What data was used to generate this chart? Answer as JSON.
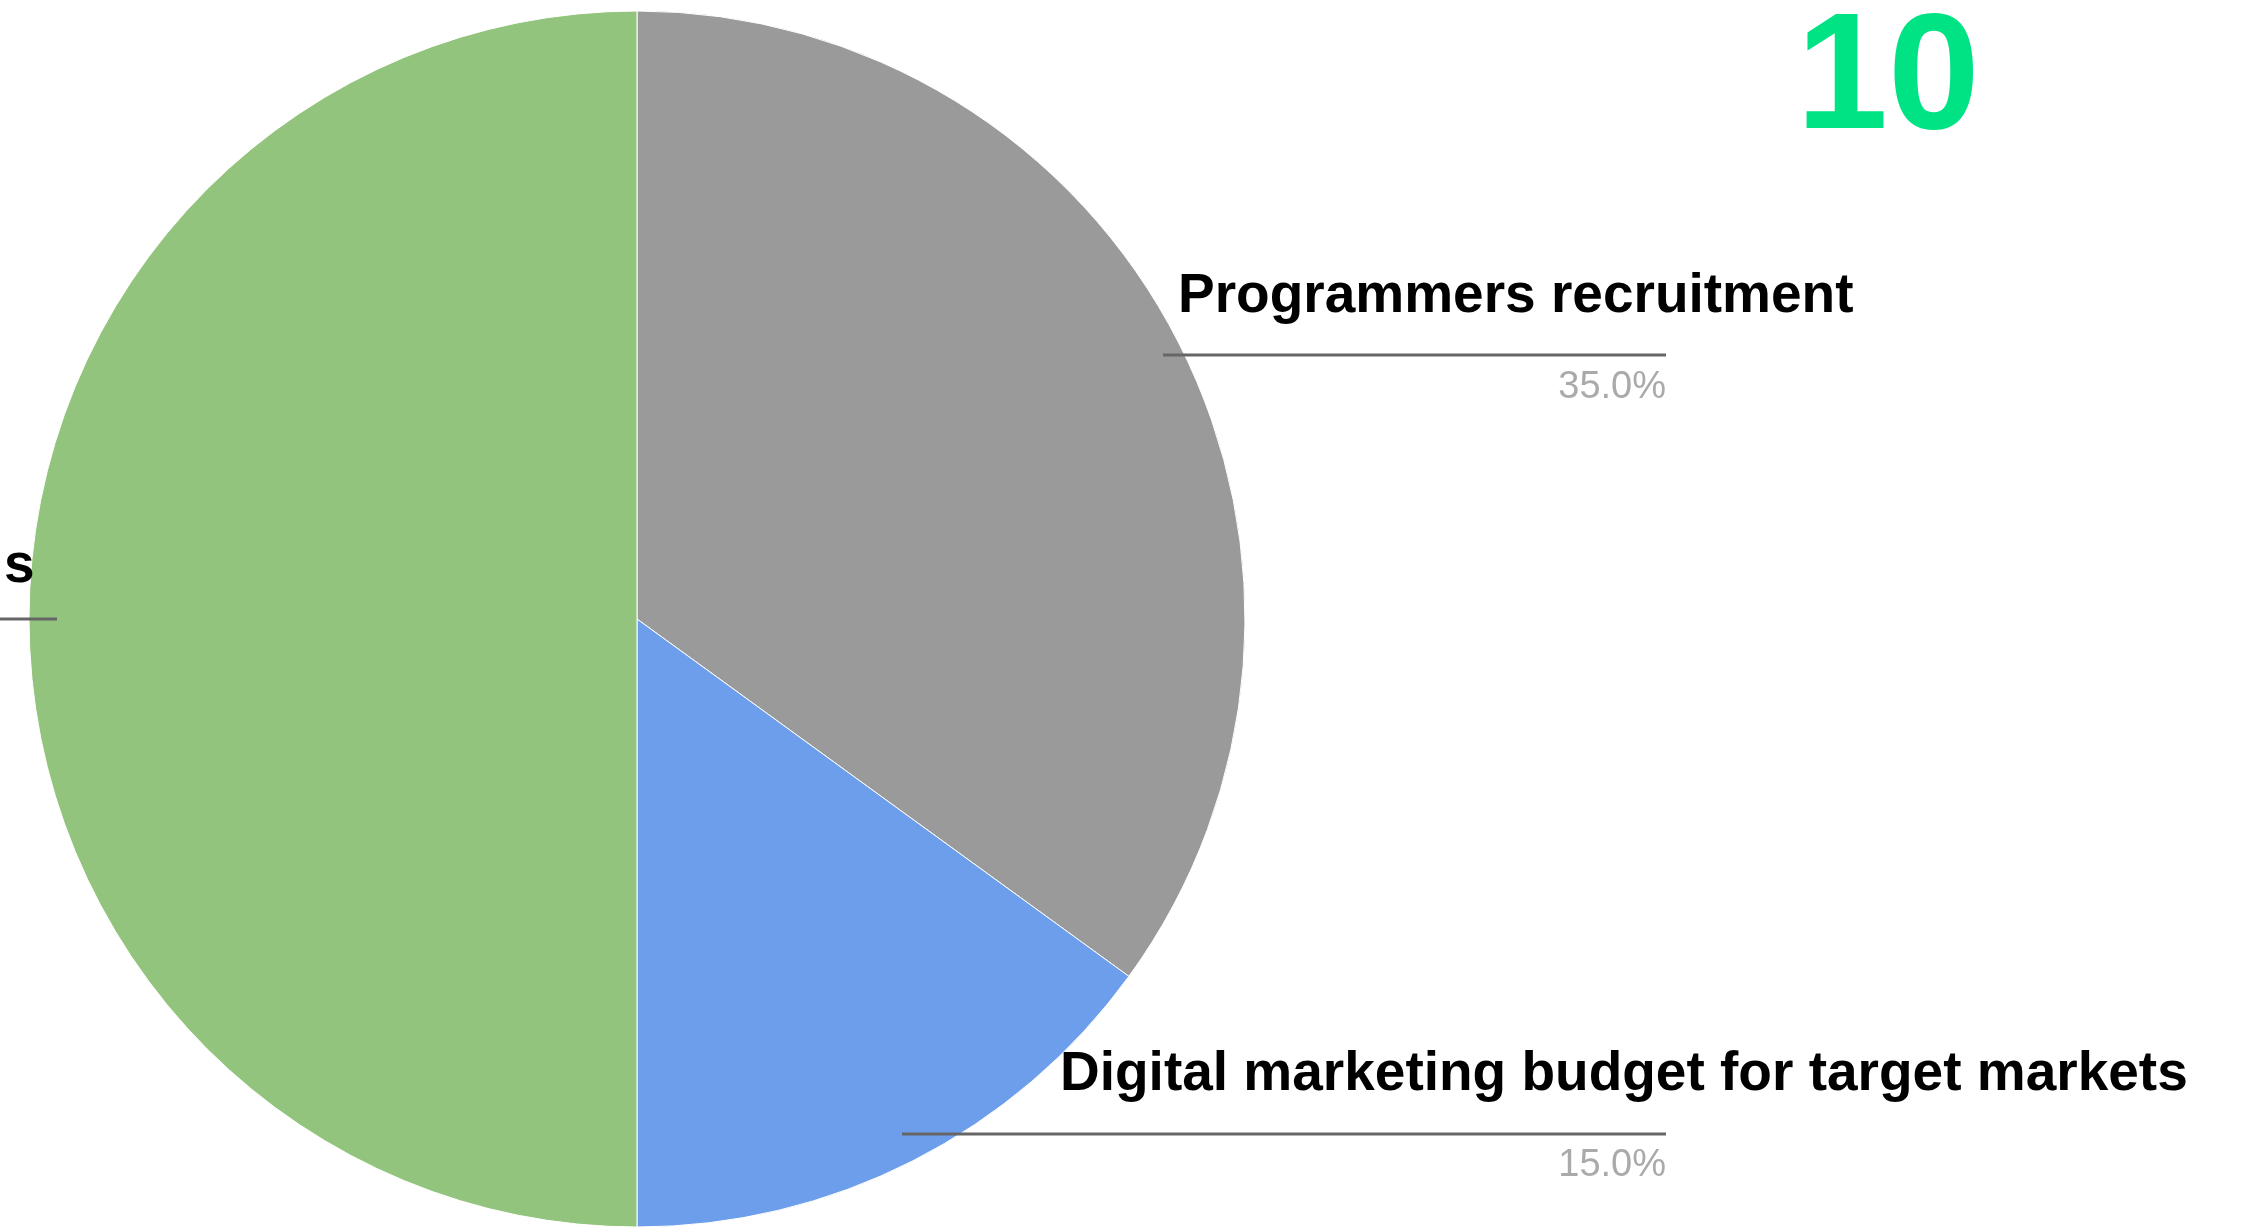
{
  "chart_data": {
    "type": "pie",
    "categories": [
      "Programmers recruitment",
      "Digital marketing budget for target markets",
      "s"
    ],
    "values": [
      35,
      15,
      50
    ],
    "colors": [
      "#9a9a9a",
      "#6d9eeb",
      "#93c47d"
    ],
    "value_labels": [
      "35.0%",
      "15.0%",
      null
    ],
    "annotations": [
      "10"
    ]
  }
}
